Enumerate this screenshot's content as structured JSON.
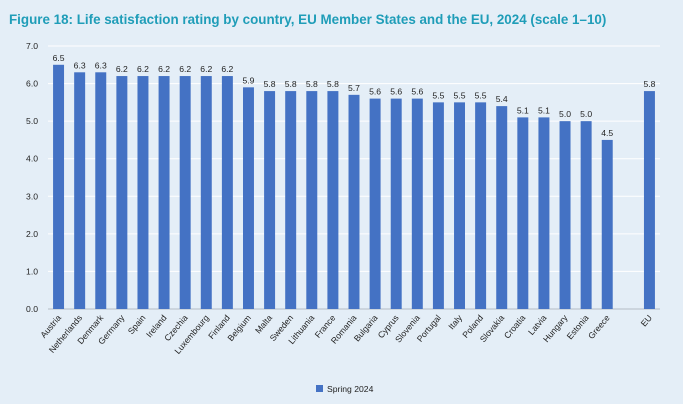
{
  "figure": {
    "title": "Figure 18: Life satisfaction rating by country, EU Member States and the EU, 2024 (scale 1–10)"
  },
  "colors": {
    "background": "#e4eef7",
    "title": "#1f9db8",
    "bar": "#4472c4",
    "gridline": "#ffffff"
  },
  "chart_data": {
    "type": "bar",
    "categories": [
      "Austria",
      "Netherlands",
      "Denmark",
      "Germany",
      "Spain",
      "Ireland",
      "Czechia",
      "Luxembourg",
      "Finland",
      "Belgium",
      "Malta",
      "Sweden",
      "Lithuania",
      "France",
      "Romania",
      "Bulgaria",
      "Cyprus",
      "Slovenia",
      "Portugal",
      "Italy",
      "Poland",
      "Slovakia",
      "Croatia",
      "Latvia",
      "Hungary",
      "Estonia",
      "Greece",
      "EU"
    ],
    "gap_before": [
      "EU"
    ],
    "series": [
      {
        "name": "Spring 2024",
        "values": [
          6.5,
          6.3,
          6.3,
          6.2,
          6.2,
          6.2,
          6.2,
          6.2,
          6.2,
          5.9,
          5.8,
          5.8,
          5.8,
          5.8,
          5.7,
          5.6,
          5.6,
          5.6,
          5.5,
          5.5,
          5.5,
          5.4,
          5.1,
          5.1,
          5.0,
          5.0,
          4.5,
          5.8
        ],
        "data_labels": [
          "6.5",
          "6.3",
          "6.3",
          "6.2",
          "6.2",
          "6.2",
          "6.2",
          "6.2",
          "6.2",
          "5.9",
          "5.8",
          "5.8",
          "5.8",
          "5.8",
          "5.7",
          "5.6",
          "5.6",
          "5.6",
          "5.5",
          "5.5",
          "5.5",
          "5.4",
          "5.1",
          "5.1",
          "5.0",
          "5.0",
          "4.5",
          "5.8"
        ]
      }
    ],
    "ylim": [
      0,
      7
    ],
    "yticks": [
      "0.0",
      "1.0",
      "2.0",
      "3.0",
      "4.0",
      "5.0",
      "6.0",
      "7.0"
    ],
    "grid": true,
    "legend": "bottom-center",
    "xlabel": "",
    "ylabel": ""
  }
}
